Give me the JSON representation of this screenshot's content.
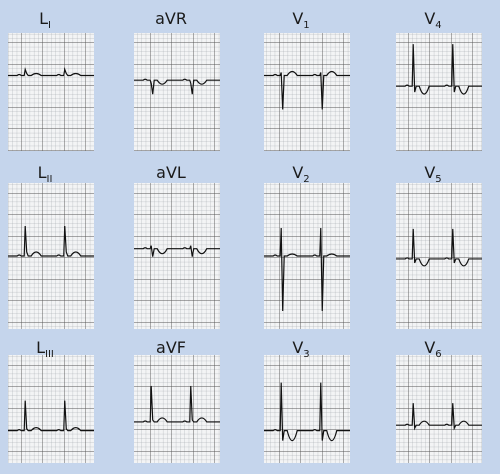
{
  "leads": [
    {
      "main": "L",
      "sub": "I"
    },
    {
      "main": "aVR"
    },
    {
      "main": "V",
      "sub": "1"
    },
    {
      "main": "V",
      "sub": "4"
    },
    {
      "main": "L",
      "sub": "II"
    },
    {
      "main": "aVL"
    },
    {
      "main": "V",
      "sub": "2"
    },
    {
      "main": "V",
      "sub": "5"
    },
    {
      "main": "L",
      "sub": "III"
    },
    {
      "main": "aVF"
    },
    {
      "main": "V",
      "sub": "3"
    },
    {
      "main": "V",
      "sub": "6"
    }
  ]
}
